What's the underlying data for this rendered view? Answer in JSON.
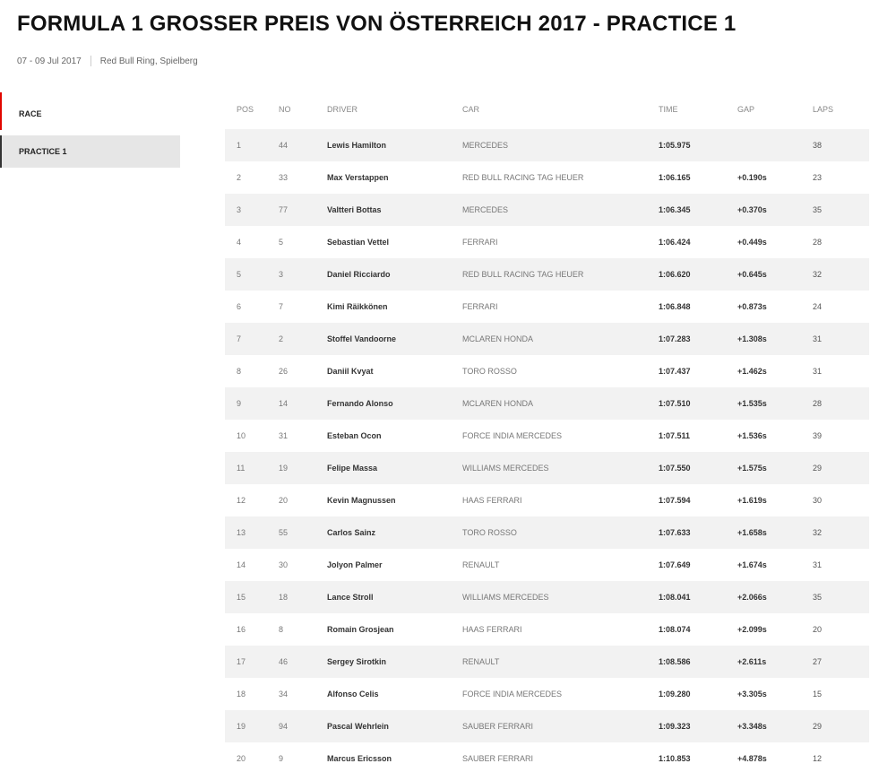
{
  "header": {
    "title": "FORMULA 1 GROSSER PREIS VON ÖSTERREICH 2017 - PRACTICE 1",
    "dates": "07 - 09 Jul 2017",
    "venue": "Red Bull Ring, Spielberg"
  },
  "sidebar": {
    "items": [
      {
        "label": "RACE"
      },
      {
        "label": "PRACTICE 1"
      }
    ]
  },
  "accent": "#e10600",
  "table": {
    "columns": [
      "POS",
      "NO",
      "DRIVER",
      "CAR",
      "TIME",
      "GAP",
      "LAPS"
    ],
    "rows": [
      [
        "1",
        "44",
        "Lewis Hamilton",
        "MERCEDES",
        "1:05.975",
        "",
        "38"
      ],
      [
        "2",
        "33",
        "Max Verstappen",
        "RED BULL RACING TAG HEUER",
        "1:06.165",
        "+0.190s",
        "23"
      ],
      [
        "3",
        "77",
        "Valtteri Bottas",
        "MERCEDES",
        "1:06.345",
        "+0.370s",
        "35"
      ],
      [
        "4",
        "5",
        "Sebastian Vettel",
        "FERRARI",
        "1:06.424",
        "+0.449s",
        "28"
      ],
      [
        "5",
        "3",
        "Daniel Ricciardo",
        "RED BULL RACING TAG HEUER",
        "1:06.620",
        "+0.645s",
        "32"
      ],
      [
        "6",
        "7",
        "Kimi Räikkönen",
        "FERRARI",
        "1:06.848",
        "+0.873s",
        "24"
      ],
      [
        "7",
        "2",
        "Stoffel Vandoorne",
        "MCLAREN HONDA",
        "1:07.283",
        "+1.308s",
        "31"
      ],
      [
        "8",
        "26",
        "Daniil Kvyat",
        "TORO ROSSO",
        "1:07.437",
        "+1.462s",
        "31"
      ],
      [
        "9",
        "14",
        "Fernando Alonso",
        "MCLAREN HONDA",
        "1:07.510",
        "+1.535s",
        "28"
      ],
      [
        "10",
        "31",
        "Esteban Ocon",
        "FORCE INDIA MERCEDES",
        "1:07.511",
        "+1.536s",
        "39"
      ],
      [
        "11",
        "19",
        "Felipe Massa",
        "WILLIAMS MERCEDES",
        "1:07.550",
        "+1.575s",
        "29"
      ],
      [
        "12",
        "20",
        "Kevin Magnussen",
        "HAAS FERRARI",
        "1:07.594",
        "+1.619s",
        "30"
      ],
      [
        "13",
        "55",
        "Carlos Sainz",
        "TORO ROSSO",
        "1:07.633",
        "+1.658s",
        "32"
      ],
      [
        "14",
        "30",
        "Jolyon Palmer",
        "RENAULT",
        "1:07.649",
        "+1.674s",
        "31"
      ],
      [
        "15",
        "18",
        "Lance Stroll",
        "WILLIAMS MERCEDES",
        "1:08.041",
        "+2.066s",
        "35"
      ],
      [
        "16",
        "8",
        "Romain Grosjean",
        "HAAS FERRARI",
        "1:08.074",
        "+2.099s",
        "20"
      ],
      [
        "17",
        "46",
        "Sergey Sirotkin",
        "RENAULT",
        "1:08.586",
        "+2.611s",
        "27"
      ],
      [
        "18",
        "34",
        "Alfonso Celis",
        "FORCE INDIA MERCEDES",
        "1:09.280",
        "+3.305s",
        "15"
      ],
      [
        "19",
        "94",
        "Pascal Wehrlein",
        "SAUBER FERRARI",
        "1:09.323",
        "+3.348s",
        "29"
      ],
      [
        "20",
        "9",
        "Marcus Ericsson",
        "SAUBER FERRARI",
        "1:10.853",
        "+4.878s",
        "12"
      ]
    ]
  }
}
